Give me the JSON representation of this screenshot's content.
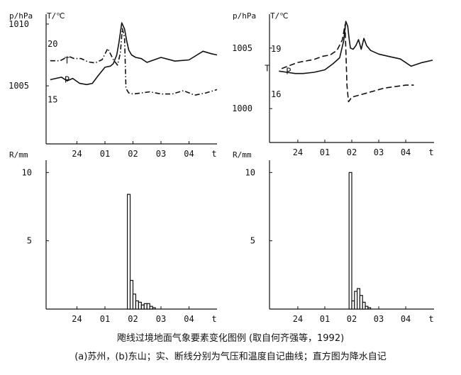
{
  "caption": {
    "title": "飑线过境地面气象要素变化图例 (取自何齐强等，1992)",
    "note": "(a)苏州，(b)东山；实、断线分别为气压和温度自记曲线；直方图为降水自记"
  },
  "axis_text": {
    "p_unit": "p/hPa",
    "t_unit": "T/℃",
    "r_unit": "R/mm",
    "x_unit": "t",
    "p_curve_label": "P",
    "t_curve_label": "T"
  },
  "chart_data": [
    {
      "id": "a-line",
      "type": "line",
      "x_ticks": [
        "24",
        "01",
        "02",
        "03",
        "04"
      ],
      "x_tick_hours": [
        0,
        1,
        2,
        3,
        4
      ],
      "xlim": [
        -1.1,
        5.0
      ],
      "p_ticks": [
        1005,
        1010
      ],
      "p_lim": [
        1000.3,
        1010.8
      ],
      "t_ticks": [
        15,
        20
      ],
      "t_lim": [
        11.0,
        22.7
      ],
      "series": [
        {
          "name": "P",
          "axis": "p",
          "style": "solid",
          "x": [
            -0.95,
            -0.75,
            -0.55,
            -0.35,
            -0.15,
            0.1,
            0.35,
            0.55,
            0.75,
            1.0,
            1.2,
            1.3,
            1.42,
            1.5,
            1.6,
            1.7,
            1.78,
            1.85,
            1.95,
            2.1,
            2.3,
            2.5,
            2.75,
            3.0,
            3.5,
            4.0,
            4.5,
            4.8,
            5.0
          ],
          "y": [
            1005.5,
            1005.6,
            1005.7,
            1005.4,
            1005.6,
            1005.2,
            1005.1,
            1005.2,
            1005.8,
            1006.5,
            1006.6,
            1006.8,
            1007.5,
            1008.5,
            1010.1,
            1009.6,
            1008.6,
            1007.9,
            1007.5,
            1007.3,
            1007.2,
            1006.9,
            1007.1,
            1007.3,
            1007.0,
            1007.1,
            1007.8,
            1007.6,
            1007.5
          ]
        },
        {
          "name": "T",
          "axis": "t",
          "style": "dash-dot",
          "x": [
            -0.95,
            -0.6,
            -0.3,
            -0.1,
            0.15,
            0.4,
            0.65,
            0.9,
            1.1,
            1.3,
            1.45,
            1.55,
            1.62,
            1.7,
            1.75,
            1.85,
            2.0,
            2.3,
            2.6,
            3.0,
            3.4,
            3.8,
            4.2,
            4.6,
            5.0
          ],
          "y": [
            18.5,
            18.5,
            18.9,
            18.7,
            18.7,
            18.4,
            18.3,
            18.6,
            19.6,
            18.6,
            18.1,
            19.2,
            21.4,
            20.6,
            16.0,
            15.6,
            15.5,
            15.6,
            15.7,
            15.5,
            15.5,
            15.8,
            15.4,
            15.6,
            15.9
          ]
        }
      ]
    },
    {
      "id": "a-bar",
      "type": "bar",
      "x_ticks": [
        "24",
        "01",
        "02",
        "03",
        "04"
      ],
      "x_tick_hours": [
        0,
        1,
        2,
        3,
        4
      ],
      "xlim": [
        -1.1,
        5.0
      ],
      "y_ticks": [
        5,
        10
      ],
      "ylim": [
        0,
        10.9
      ],
      "bin_hours": 0.1,
      "bin_start": [
        1.8,
        1.9,
        2.0,
        2.1,
        2.2,
        2.3,
        2.4,
        2.5,
        2.6,
        2.7
      ],
      "values": [
        8.4,
        2.1,
        1.1,
        0.6,
        0.5,
        0.3,
        0.4,
        0.4,
        0.2,
        0.1
      ]
    },
    {
      "id": "b-line",
      "type": "line",
      "x_ticks": [
        "24",
        "01",
        "02",
        "03",
        "04"
      ],
      "x_tick_hours": [
        0,
        1,
        2,
        3,
        4
      ],
      "xlim": [
        -1.05,
        5.05
      ],
      "p_ticks": [
        1000,
        1005
      ],
      "p_lim": [
        997.2,
        1007.8
      ],
      "t_ticks": [
        16,
        19
      ],
      "t_lim": [
        12.8,
        21.3
      ],
      "series": [
        {
          "name": "P",
          "axis": "p",
          "style": "solid",
          "x": [
            -0.7,
            -0.4,
            -0.1,
            0.2,
            0.6,
            1.0,
            1.3,
            1.55,
            1.7,
            1.78,
            1.85,
            1.9,
            1.95,
            2.05,
            2.15,
            2.25,
            2.35,
            2.45,
            2.55,
            2.7,
            3.0,
            3.4,
            3.8,
            4.2,
            4.6,
            5.0
          ],
          "y": [
            1003.1,
            1003.0,
            1002.9,
            1002.9,
            1003.0,
            1003.2,
            1003.7,
            1004.2,
            1005.6,
            1007.2,
            1006.8,
            1005.8,
            1005.0,
            1004.9,
            1005.2,
            1005.7,
            1004.9,
            1005.8,
            1005.2,
            1004.8,
            1004.5,
            1004.3,
            1004.1,
            1003.5,
            1003.8,
            1004.0
          ]
        },
        {
          "name": "T",
          "axis": "t",
          "style": "dash",
          "x": [
            -0.6,
            -0.3,
            0.0,
            0.3,
            0.6,
            0.9,
            1.2,
            1.45,
            1.65,
            1.75,
            1.82,
            1.88,
            2.0,
            2.4,
            2.8,
            3.2,
            3.6,
            4.0,
            4.3
          ],
          "y": [
            17.7,
            17.9,
            18.1,
            18.2,
            18.3,
            18.5,
            18.6,
            18.9,
            19.6,
            20.6,
            16.6,
            15.5,
            15.8,
            16.0,
            16.2,
            16.4,
            16.5,
            16.6,
            16.6
          ]
        }
      ]
    },
    {
      "id": "b-bar",
      "type": "bar",
      "x_ticks": [
        "24",
        "01",
        "02",
        "03",
        "04"
      ],
      "x_tick_hours": [
        0,
        1,
        2,
        3,
        4
      ],
      "xlim": [
        -1.05,
        5.05
      ],
      "y_ticks": [
        5,
        10
      ],
      "ylim": [
        0,
        10.9
      ],
      "bin_hours": 0.1,
      "bin_start": [
        1.9,
        2.0,
        2.1,
        2.2,
        2.3,
        2.4,
        2.5,
        2.6
      ],
      "values": [
        10.0,
        0.6,
        1.3,
        1.5,
        1.0,
        0.5,
        0.2,
        0.1
      ]
    }
  ]
}
